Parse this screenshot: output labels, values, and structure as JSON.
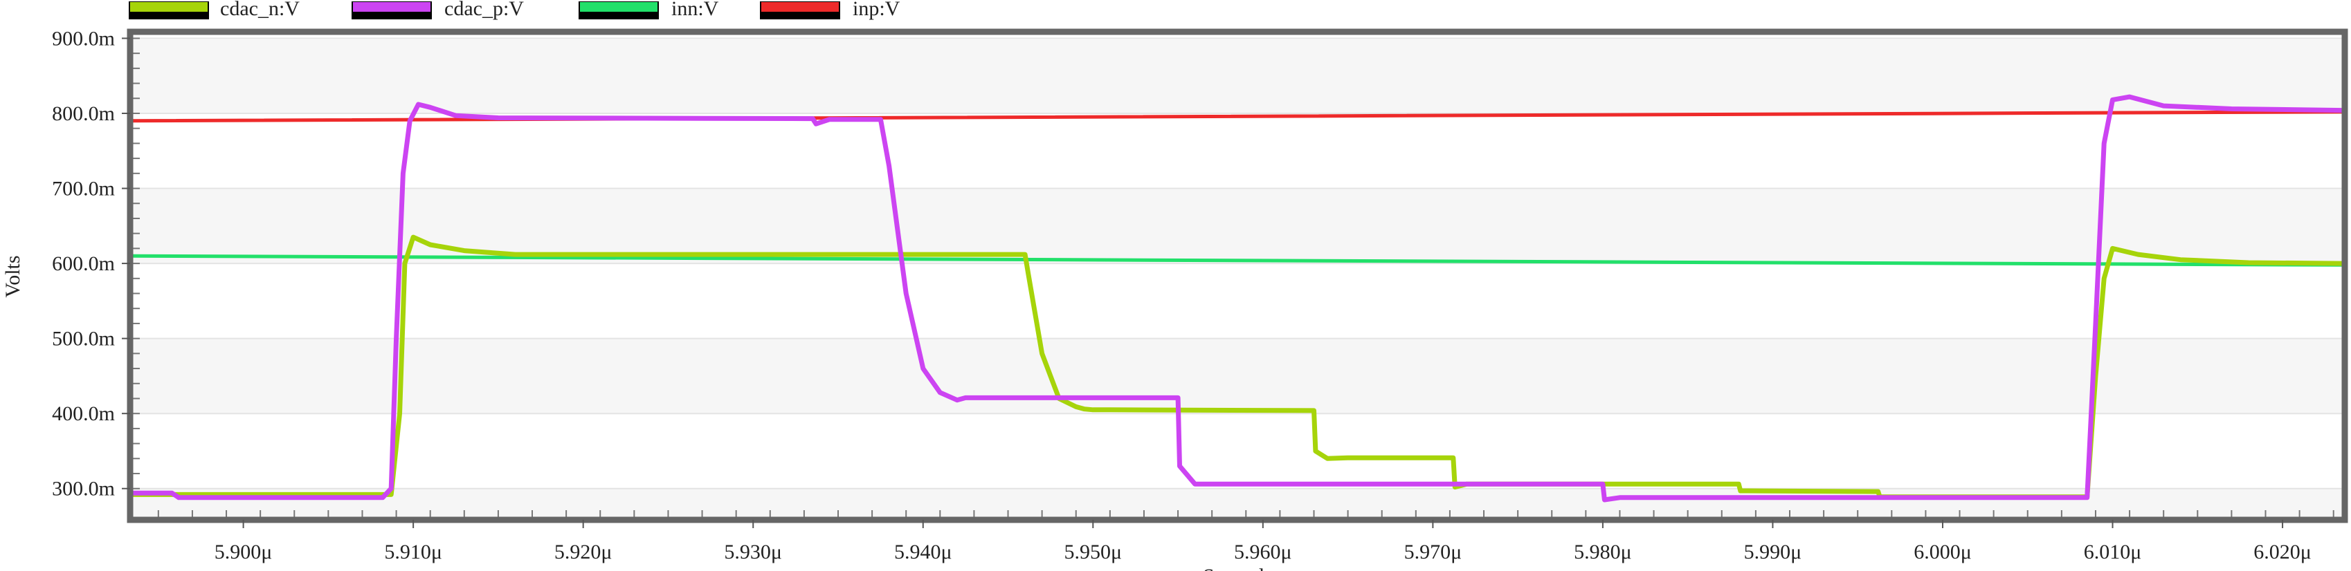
{
  "chart_data": {
    "type": "line",
    "title": "",
    "xlabel": "Seconds",
    "ylabel": "Volts",
    "xlim": [
      5.8935,
      6.0235
    ],
    "ylim": [
      262,
      905
    ],
    "grid": true,
    "legend": "top-left",
    "x_ticks": [
      {
        "v": 5.9,
        "label": "5.900μ"
      },
      {
        "v": 5.91,
        "label": "5.910μ"
      },
      {
        "v": 5.92,
        "label": "5.920μ"
      },
      {
        "v": 5.93,
        "label": "5.930μ"
      },
      {
        "v": 5.94,
        "label": "5.940μ"
      },
      {
        "v": 5.95,
        "label": "5.950μ"
      },
      {
        "v": 5.96,
        "label": "5.960μ"
      },
      {
        "v": 5.97,
        "label": "5.970μ"
      },
      {
        "v": 5.98,
        "label": "5.980μ"
      },
      {
        "v": 5.99,
        "label": "5.990μ"
      },
      {
        "v": 6.0,
        "label": "6.000μ"
      },
      {
        "v": 6.01,
        "label": "6.010μ"
      },
      {
        "v": 6.02,
        "label": "6.020μ"
      }
    ],
    "y_ticks": [
      {
        "v": 300,
        "label": "300.0m"
      },
      {
        "v": 400,
        "label": "400.0m"
      },
      {
        "v": 500,
        "label": "500.0m"
      },
      {
        "v": 600,
        "label": "600.0m"
      },
      {
        "v": 700,
        "label": "700.0m"
      },
      {
        "v": 800,
        "label": "800.0m"
      },
      {
        "v": 900,
        "label": "900.0m"
      }
    ],
    "series": [
      {
        "name": "cdac_n:V",
        "color": "#a6d40a",
        "x": [
          5.8935,
          5.9087,
          5.9092,
          5.9095,
          5.91,
          5.911,
          5.913,
          5.916,
          5.946,
          5.9462,
          5.947,
          5.948,
          5.949,
          5.9495,
          5.95,
          5.951,
          5.963,
          5.9631,
          5.9638,
          5.965,
          5.9712,
          5.9713,
          5.972,
          5.988,
          5.9881,
          5.9885,
          5.9962,
          5.9963,
          6.0085,
          6.009,
          6.0095,
          6.01,
          6.0115,
          6.014,
          6.018,
          6.0235
        ],
        "values": [
          292,
          292,
          400,
          600,
          635,
          625,
          617,
          612,
          612,
          585,
          480,
          420,
          409,
          406,
          405,
          405,
          404,
          350,
          340,
          341,
          341,
          302,
          306,
          306,
          297,
          297,
          296,
          289,
          289,
          450,
          580,
          620,
          612,
          605,
          601,
          600
        ]
      },
      {
        "name": "cdac_p:V",
        "color": "#cc44f2",
        "x": [
          5.8935,
          5.8958,
          5.8962,
          5.9082,
          5.9087,
          5.909,
          5.9094,
          5.9098,
          5.9103,
          5.911,
          5.9125,
          5.915,
          5.9335,
          5.9337,
          5.9345,
          5.9375,
          5.938,
          5.939,
          5.94,
          5.941,
          5.942,
          5.9425,
          5.955,
          5.9551,
          5.956,
          5.98,
          5.9801,
          5.981,
          6.0085,
          6.009,
          6.0095,
          6.01,
          6.011,
          6.013,
          6.017,
          6.0235
        ],
        "values": [
          294,
          294,
          288,
          288,
          300,
          500,
          720,
          790,
          812,
          808,
          797,
          794,
          793,
          786,
          792,
          792,
          730,
          560,
          460,
          428,
          418,
          421,
          421,
          330,
          306,
          306,
          285,
          288,
          288,
          520,
          760,
          818,
          822,
          810,
          806,
          804
        ]
      },
      {
        "name": "inn:V",
        "color": "#22e06a",
        "x": [
          5.8935,
          6.0235
        ],
        "values": [
          610,
          598
        ]
      },
      {
        "name": "inp:V",
        "color": "#ee2a2a",
        "x": [
          5.8935,
          6.0235
        ],
        "values": [
          790,
          802
        ]
      }
    ]
  }
}
